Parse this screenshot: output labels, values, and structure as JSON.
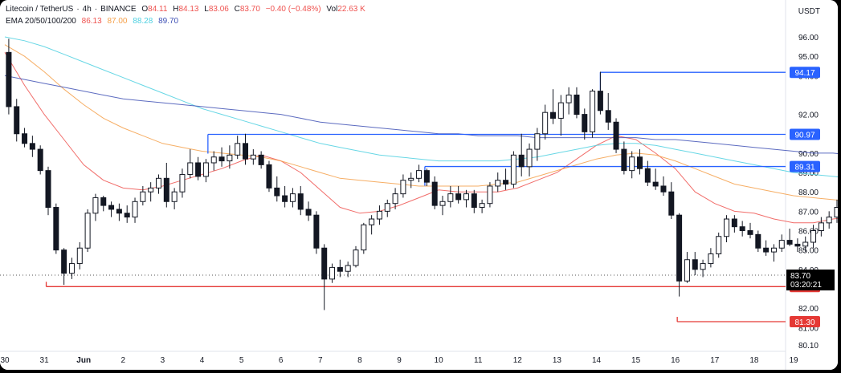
{
  "header": {
    "symbol": "Litecoin / TetherUS",
    "interval": "4h",
    "exchange": "BINANCE",
    "open_label": "O",
    "open": "84.11",
    "high_label": "H",
    "high": "84.13",
    "low_label": "L",
    "low": "83.06",
    "close_label": "C",
    "close": "83.70",
    "change": "−0.40 (−0.48%)",
    "vol_label": "Vol",
    "vol": "22.63 K",
    "currency": "USDT",
    "ema_label": "EMA 20/50/100/200",
    "ema_values": [
      "86.13",
      "87.00",
      "88.28",
      "89.70"
    ]
  },
  "chart_data": {
    "type": "candlestick",
    "ylim": [
      79.9,
      97.1
    ],
    "y_ticks": [
      80.1,
      81.0,
      82.0,
      83.0,
      84.0,
      85.0,
      86.0,
      87.0,
      88.0,
      89.0,
      90.0,
      91.0,
      92.0,
      94.0,
      95.0,
      96.0
    ],
    "x_ticks": [
      "30",
      "31",
      "Jun",
      "2",
      "3",
      "4",
      "5",
      "6",
      "7",
      "8",
      "9",
      "10",
      "11",
      "12",
      "13",
      "14",
      "15",
      "16",
      "17",
      "18",
      "19"
    ],
    "x_tick_days": [
      30,
      31,
      32,
      33,
      34,
      35,
      36,
      37,
      38,
      39,
      40,
      41,
      42,
      43,
      44,
      45,
      46,
      47,
      48,
      49,
      50
    ],
    "candles": [
      [
        30.1,
        95.2,
        95.9,
        92.0,
        92.4
      ],
      [
        30.3,
        92.4,
        92.8,
        90.6,
        91.0
      ],
      [
        30.5,
        91.0,
        91.3,
        90.3,
        90.5
      ],
      [
        30.7,
        90.5,
        90.9,
        89.8,
        90.2
      ],
      [
        30.9,
        90.2,
        90.4,
        88.9,
        89.1
      ],
      [
        31.1,
        89.1,
        89.3,
        86.8,
        87.2
      ],
      [
        31.3,
        87.2,
        87.4,
        84.8,
        85.0
      ],
      [
        31.5,
        85.0,
        85.1,
        83.2,
        83.8
      ],
      [
        31.7,
        83.8,
        84.6,
        83.5,
        84.3
      ],
      [
        31.9,
        84.3,
        85.4,
        84.0,
        85.1
      ],
      [
        32.1,
        85.1,
        87.1,
        84.9,
        86.9
      ],
      [
        32.3,
        86.9,
        87.9,
        86.5,
        87.7
      ],
      [
        32.5,
        87.7,
        87.8,
        87.0,
        87.3
      ],
      [
        32.7,
        87.3,
        87.5,
        86.7,
        87.1
      ],
      [
        32.9,
        87.1,
        87.4,
        86.5,
        86.9
      ],
      [
        33.1,
        86.9,
        87.3,
        86.4,
        86.7
      ],
      [
        33.3,
        86.7,
        87.7,
        86.4,
        87.5
      ],
      [
        33.5,
        87.5,
        88.3,
        87.3,
        88.0
      ],
      [
        33.7,
        88.0,
        88.5,
        87.5,
        88.2
      ],
      [
        33.9,
        88.2,
        88.9,
        87.9,
        88.7
      ],
      [
        34.1,
        88.7,
        89.5,
        87.2,
        87.5
      ],
      [
        34.3,
        87.5,
        88.2,
        87.1,
        88.0
      ],
      [
        34.5,
        88.0,
        89.2,
        87.7,
        88.9
      ],
      [
        34.7,
        88.9,
        90.2,
        88.7,
        89.5
      ],
      [
        34.9,
        89.5,
        89.8,
        88.6,
        88.8
      ],
      [
        35.1,
        88.8,
        89.7,
        88.5,
        89.5
      ],
      [
        35.3,
        89.5,
        90.1,
        89.1,
        89.8
      ],
      [
        35.5,
        89.8,
        90.3,
        89.3,
        89.6
      ],
      [
        35.7,
        89.6,
        90.4,
        89.2,
        89.9
      ],
      [
        35.9,
        89.9,
        90.9,
        89.7,
        90.5
      ],
      [
        36.1,
        90.5,
        91.0,
        89.4,
        89.7
      ],
      [
        36.3,
        89.7,
        90.2,
        89.4,
        89.9
      ],
      [
        36.5,
        89.9,
        90.1,
        89.2,
        89.4
      ],
      [
        36.7,
        89.4,
        89.6,
        88.0,
        88.2
      ],
      [
        36.9,
        88.2,
        88.8,
        87.5,
        87.8
      ],
      [
        37.1,
        87.8,
        88.3,
        87.2,
        87.5
      ],
      [
        37.3,
        87.5,
        88.2,
        87.2,
        87.9
      ],
      [
        37.5,
        87.9,
        88.3,
        86.8,
        87.1
      ],
      [
        37.7,
        87.1,
        87.5,
        86.5,
        86.8
      ],
      [
        37.9,
        86.8,
        87.0,
        84.8,
        85.1
      ],
      [
        38.1,
        85.1,
        85.3,
        81.9,
        83.5
      ],
      [
        38.3,
        83.5,
        84.3,
        83.3,
        84.1
      ],
      [
        38.5,
        84.1,
        84.5,
        83.6,
        83.9
      ],
      [
        38.7,
        83.9,
        84.4,
        83.6,
        84.2
      ],
      [
        38.9,
        84.2,
        85.2,
        84.1,
        85.0
      ],
      [
        39.1,
        85.0,
        86.4,
        84.8,
        86.3
      ],
      [
        39.3,
        86.3,
        86.8,
        85.8,
        86.6
      ],
      [
        39.5,
        86.6,
        87.3,
        86.3,
        87.0
      ],
      [
        39.7,
        87.0,
        87.6,
        86.7,
        87.4
      ],
      [
        39.9,
        87.4,
        88.2,
        87.1,
        87.9
      ],
      [
        40.1,
        87.9,
        88.9,
        87.7,
        88.6
      ],
      [
        40.3,
        88.6,
        89.0,
        88.2,
        88.7
      ],
      [
        40.5,
        88.7,
        89.4,
        88.5,
        89.1
      ],
      [
        40.7,
        89.1,
        89.2,
        88.3,
        88.5
      ],
      [
        40.9,
        88.5,
        88.8,
        87.1,
        87.3
      ],
      [
        41.1,
        87.3,
        87.8,
        86.8,
        87.5
      ],
      [
        41.3,
        87.5,
        88.3,
        87.2,
        87.9
      ],
      [
        41.5,
        87.9,
        88.3,
        87.4,
        87.6
      ],
      [
        41.7,
        87.6,
        88.1,
        87.2,
        87.9
      ],
      [
        41.9,
        87.9,
        88.1,
        86.9,
        87.2
      ],
      [
        42.1,
        87.2,
        87.6,
        86.9,
        87.4
      ],
      [
        42.3,
        87.4,
        88.5,
        87.2,
        88.3
      ],
      [
        42.5,
        88.3,
        89.0,
        88.0,
        88.6
      ],
      [
        42.7,
        88.6,
        89.2,
        88.1,
        88.4
      ],
      [
        42.9,
        88.4,
        90.1,
        88.2,
        89.9
      ],
      [
        43.1,
        89.9,
        91.0,
        88.8,
        89.3
      ],
      [
        43.3,
        89.3,
        90.5,
        88.8,
        90.2
      ],
      [
        43.5,
        90.2,
        91.3,
        89.6,
        91.0
      ],
      [
        43.7,
        91.0,
        92.5,
        90.7,
        92.1
      ],
      [
        43.9,
        92.1,
        93.3,
        91.5,
        91.8
      ],
      [
        44.1,
        91.8,
        93.0,
        90.9,
        92.6
      ],
      [
        44.3,
        92.6,
        93.4,
        92.0,
        93.0
      ],
      [
        44.5,
        93.0,
        93.4,
        91.8,
        92.0
      ],
      [
        44.7,
        92.0,
        92.3,
        90.7,
        91.1
      ],
      [
        44.9,
        91.1,
        93.3,
        90.8,
        93.2
      ],
      [
        45.1,
        93.2,
        94.2,
        92.0,
        92.2
      ],
      [
        45.3,
        92.2,
        93.1,
        91.2,
        91.6
      ],
      [
        45.5,
        91.6,
        91.8,
        90.0,
        90.2
      ],
      [
        45.7,
        90.2,
        90.6,
        88.9,
        89.1
      ],
      [
        45.9,
        89.1,
        90.1,
        88.7,
        89.8
      ],
      [
        46.1,
        89.8,
        90.2,
        88.9,
        89.2
      ],
      [
        46.3,
        89.2,
        89.6,
        88.3,
        88.5
      ],
      [
        46.5,
        88.5,
        89.2,
        88.1,
        88.3
      ],
      [
        46.7,
        88.3,
        88.8,
        87.8,
        88.0
      ],
      [
        46.9,
        88.0,
        88.5,
        86.6,
        86.8
      ],
      [
        47.1,
        86.8,
        86.9,
        82.6,
        83.4
      ],
      [
        47.3,
        83.4,
        84.9,
        83.3,
        84.5
      ],
      [
        47.5,
        84.5,
        84.9,
        83.7,
        84.0
      ],
      [
        47.7,
        84.0,
        84.5,
        83.6,
        84.3
      ],
      [
        47.9,
        84.3,
        85.1,
        84.1,
        84.8
      ],
      [
        48.1,
        84.8,
        85.9,
        84.6,
        85.7
      ],
      [
        48.3,
        85.7,
        86.8,
        85.4,
        86.6
      ],
      [
        48.5,
        86.6,
        86.8,
        85.9,
        86.2
      ],
      [
        48.7,
        86.2,
        86.5,
        85.7,
        86.0
      ],
      [
        48.9,
        86.0,
        86.4,
        85.6,
        85.8
      ],
      [
        49.1,
        85.8,
        86.0,
        84.9,
        85.1
      ],
      [
        49.3,
        85.1,
        85.5,
        84.7,
        84.9
      ],
      [
        49.5,
        84.9,
        85.3,
        84.4,
        85.1
      ],
      [
        49.7,
        85.1,
        85.8,
        84.9,
        85.5
      ],
      [
        49.9,
        85.5,
        86.1,
        85.2,
        85.3
      ],
      [
        50.1,
        85.3,
        85.6,
        84.9,
        85.2
      ],
      [
        50.3,
        85.2,
        85.7,
        84.9,
        85.4
      ],
      [
        50.5,
        85.4,
        86.3,
        85.1,
        86.0
      ],
      [
        50.7,
        86.0,
        86.7,
        85.7,
        86.4
      ],
      [
        50.9,
        86.4,
        87.0,
        86.1,
        86.7
      ],
      [
        51.1,
        86.7,
        87.6,
        86.4,
        87.2
      ],
      [
        51.3,
        87.2,
        88.1,
        86.9,
        87.6
      ],
      [
        51.5,
        87.6,
        89.1,
        87.2,
        87.5
      ],
      [
        51.7,
        87.5,
        89.0,
        87.0,
        88.4
      ],
      [
        51.9,
        88.4,
        89.0,
        86.2,
        86.6
      ],
      [
        52.1,
        86.6,
        87.4,
        86.1,
        87.0
      ],
      [
        52.3,
        87.0,
        87.1,
        85.2,
        85.6
      ],
      [
        52.5,
        85.6,
        86.2,
        84.7,
        85.1
      ],
      [
        52.7,
        85.1,
        85.3,
        83.8,
        84.0
      ],
      [
        52.9,
        84.0,
        84.2,
        83.1,
        83.7
      ]
    ],
    "series": [
      {
        "name": "EMA 20",
        "color": "#ef5350",
        "x": [
          30.0,
          30.5,
          31.0,
          31.5,
          32.0,
          32.5,
          33.0,
          33.5,
          34.0,
          34.5,
          35.0,
          35.5,
          36.0,
          36.5,
          37.0,
          37.5,
          38.0,
          38.5,
          39.0,
          39.5,
          40.0,
          40.5,
          41.0,
          41.5,
          42.0,
          42.5,
          43.0,
          43.5,
          44.0,
          44.5,
          45.0,
          45.5,
          46.0,
          46.5,
          47.0,
          47.5,
          48.0,
          48.5,
          49.0,
          49.5,
          50.0,
          50.5,
          51.0,
          51.5,
          52.0,
          52.5,
          52.9
        ],
        "y": [
          95.2,
          93.5,
          92.0,
          90.7,
          89.4,
          88.6,
          88.2,
          88.1,
          88.3,
          88.6,
          88.9,
          89.2,
          89.6,
          89.9,
          89.6,
          89.0,
          88.1,
          87.2,
          86.9,
          87.0,
          87.3,
          87.7,
          88.1,
          88.0,
          88.0,
          88.0,
          88.2,
          88.6,
          89.0,
          89.7,
          90.4,
          90.9,
          90.7,
          90.0,
          89.2,
          88.0,
          87.4,
          87.0,
          86.9,
          86.6,
          86.4,
          86.4,
          86.6,
          86.7,
          86.9,
          86.5,
          86.1
        ]
      },
      {
        "name": "EMA 50",
        "color": "#f5a04a",
        "x": [
          30.0,
          30.5,
          31.0,
          31.5,
          32.0,
          32.5,
          33.0,
          33.5,
          34.0,
          34.5,
          35.0,
          35.5,
          36.0,
          36.5,
          37.0,
          37.5,
          38.0,
          38.5,
          39.0,
          39.5,
          40.0,
          40.5,
          41.0,
          41.5,
          42.0,
          42.5,
          43.0,
          43.5,
          44.0,
          44.5,
          45.0,
          45.5,
          46.0,
          46.5,
          47.0,
          47.5,
          48.0,
          48.5,
          49.0,
          49.5,
          50.0,
          50.5,
          51.0,
          51.5,
          52.0,
          52.5,
          52.9
        ],
        "y": [
          95.6,
          95.0,
          94.2,
          93.3,
          92.5,
          91.8,
          91.3,
          90.9,
          90.5,
          90.3,
          90.1,
          90.0,
          89.9,
          89.8,
          89.6,
          89.3,
          89.0,
          88.7,
          88.6,
          88.5,
          88.4,
          88.3,
          88.3,
          88.3,
          88.3,
          88.4,
          88.5,
          88.8,
          89.1,
          89.4,
          89.7,
          89.9,
          90.0,
          89.9,
          89.6,
          89.2,
          88.8,
          88.4,
          88.2,
          88.0,
          87.8,
          87.7,
          87.6,
          87.5,
          87.4,
          87.2,
          87.0
        ]
      },
      {
        "name": "EMA 100",
        "color": "#4dd0e1",
        "x": [
          30.0,
          30.5,
          31.0,
          31.5,
          32.0,
          32.5,
          33.0,
          33.5,
          34.0,
          34.5,
          35.0,
          35.5,
          36.0,
          36.5,
          37.0,
          37.5,
          38.0,
          38.5,
          39.0,
          39.5,
          40.0,
          40.5,
          41.0,
          41.5,
          42.0,
          42.5,
          43.0,
          43.5,
          44.0,
          44.5,
          45.0,
          45.5,
          46.0,
          46.5,
          47.0,
          47.5,
          48.0,
          48.5,
          49.0,
          49.5,
          50.0,
          50.5,
          51.0,
          51.5,
          52.0,
          52.5,
          52.9
        ],
        "y": [
          96.0,
          95.8,
          95.5,
          95.1,
          94.7,
          94.3,
          93.9,
          93.5,
          93.1,
          92.7,
          92.3,
          92.0,
          91.7,
          91.4,
          91.1,
          90.8,
          90.5,
          90.3,
          90.1,
          89.9,
          89.8,
          89.7,
          89.6,
          89.6,
          89.6,
          89.6,
          89.7,
          89.8,
          90.0,
          90.2,
          90.4,
          90.5,
          90.5,
          90.4,
          90.2,
          90.0,
          89.8,
          89.6,
          89.4,
          89.2,
          89.0,
          88.9,
          88.8,
          88.7,
          88.5,
          88.4,
          88.3
        ]
      },
      {
        "name": "EMA 200",
        "color": "#3f51b5",
        "x": [
          30.0,
          30.5,
          31.0,
          31.5,
          32.0,
          32.5,
          33.0,
          33.5,
          34.0,
          34.5,
          35.0,
          35.5,
          36.0,
          36.5,
          37.0,
          37.5,
          38.0,
          38.5,
          39.0,
          39.5,
          40.0,
          40.5,
          41.0,
          41.5,
          42.0,
          42.5,
          43.0,
          43.5,
          44.0,
          44.5,
          45.0,
          45.5,
          46.0,
          46.5,
          47.0,
          47.5,
          48.0,
          48.5,
          49.0,
          49.5,
          50.0,
          50.5,
          51.0,
          51.5,
          52.0,
          52.5,
          52.9
        ],
        "y": [
          94.0,
          93.8,
          93.6,
          93.4,
          93.2,
          93.0,
          92.8,
          92.7,
          92.6,
          92.5,
          92.4,
          92.3,
          92.2,
          92.1,
          92.0,
          91.8,
          91.6,
          91.5,
          91.4,
          91.3,
          91.2,
          91.1,
          91.0,
          91.0,
          90.9,
          90.9,
          90.9,
          90.8,
          90.8,
          90.8,
          90.8,
          90.8,
          90.8,
          90.7,
          90.7,
          90.6,
          90.5,
          90.4,
          90.3,
          90.2,
          90.1,
          90.0,
          90.0,
          89.9,
          89.8,
          89.8,
          89.7
        ]
      }
    ],
    "h_lines": [
      {
        "value": 94.17,
        "label": "94.17",
        "color": "#2962ff",
        "from_day": 45.1
      },
      {
        "value": 90.97,
        "label": "90.97",
        "color": "#2962ff",
        "from_day": 35.15
      },
      {
        "value": 89.31,
        "label": "89.31",
        "color": "#2962ff",
        "from_day": 40.65
      },
      {
        "value": 83.11,
        "label": "83.11",
        "color": "#e53935",
        "from_day": 31.05
      },
      {
        "value": 81.3,
        "label": "81.30",
        "color": "#e53935",
        "from_day": 47.05
      }
    ],
    "last_price": {
      "value": 83.7,
      "label": "83.70",
      "countdown": "03:20:21"
    }
  }
}
